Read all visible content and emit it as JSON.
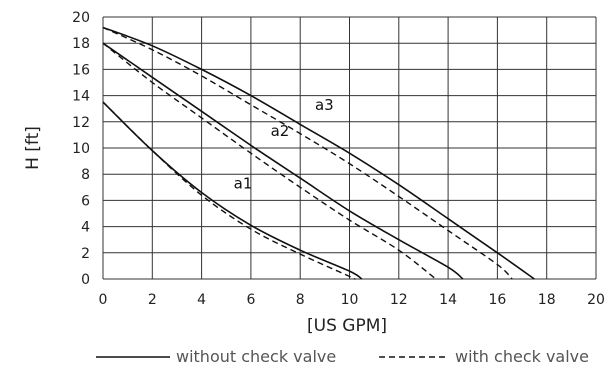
{
  "chart_data": {
    "type": "line",
    "xlabel": "[US GPM]",
    "ylabel": "H [ft]",
    "xlim": [
      0,
      20
    ],
    "ylim": [
      0,
      20
    ],
    "xticks": [
      0,
      2,
      4,
      6,
      8,
      10,
      12,
      14,
      16,
      18,
      20
    ],
    "yticks": [
      0,
      2,
      4,
      6,
      8,
      10,
      12,
      14,
      16,
      18,
      20
    ],
    "grid": true,
    "legend": {
      "placement": "bottom",
      "entries": [
        {
          "label": "without check valve",
          "style": "solid"
        },
        {
          "label": "with check valve",
          "style": "dashed"
        }
      ]
    },
    "series": [
      {
        "name": "a1",
        "style": "solid",
        "points": [
          [
            0,
            13.5
          ],
          [
            2,
            9.8
          ],
          [
            4,
            6.6
          ],
          [
            6,
            4.1
          ],
          [
            8,
            2.2
          ],
          [
            10,
            0.6
          ],
          [
            10.5,
            0
          ]
        ]
      },
      {
        "name": "a1",
        "style": "dashed",
        "points": [
          [
            0,
            13.5
          ],
          [
            2,
            9.8
          ],
          [
            4,
            6.4
          ],
          [
            6,
            3.8
          ],
          [
            8,
            1.9
          ],
          [
            10,
            0.2
          ],
          [
            10.2,
            0
          ]
        ]
      },
      {
        "name": "a2",
        "style": "solid",
        "points": [
          [
            0,
            18
          ],
          [
            2,
            15.4
          ],
          [
            4,
            12.8
          ],
          [
            6,
            10.2
          ],
          [
            8,
            7.7
          ],
          [
            10,
            5.2
          ],
          [
            12,
            3
          ],
          [
            14,
            0.9
          ],
          [
            14.6,
            0
          ]
        ]
      },
      {
        "name": "a2",
        "style": "dashed",
        "points": [
          [
            0,
            18
          ],
          [
            2,
            15
          ],
          [
            4,
            12.3
          ],
          [
            6,
            9.6
          ],
          [
            8,
            7
          ],
          [
            10,
            4.5
          ],
          [
            12,
            2.2
          ],
          [
            13.5,
            0
          ]
        ]
      },
      {
        "name": "a3",
        "style": "solid",
        "points": [
          [
            0,
            19.2
          ],
          [
            2,
            17.8
          ],
          [
            4,
            16
          ],
          [
            6,
            14
          ],
          [
            8,
            11.8
          ],
          [
            10,
            9.6
          ],
          [
            12,
            7.2
          ],
          [
            14,
            4.6
          ],
          [
            16,
            2
          ],
          [
            17.5,
            0
          ]
        ]
      },
      {
        "name": "a3",
        "style": "dashed",
        "points": [
          [
            0,
            19.2
          ],
          [
            2,
            17.5
          ],
          [
            4,
            15.5
          ],
          [
            6,
            13.3
          ],
          [
            8,
            11.1
          ],
          [
            10,
            8.8
          ],
          [
            12,
            6.3
          ],
          [
            14,
            3.7
          ],
          [
            16,
            1.1
          ],
          [
            16.6,
            0
          ]
        ]
      }
    ],
    "annotations": [
      {
        "text": "a1",
        "x": 5.3,
        "y": 6.9
      },
      {
        "text": "a2",
        "x": 6.8,
        "y": 10.9
      },
      {
        "text": "a3",
        "x": 8.6,
        "y": 12.9
      }
    ]
  }
}
